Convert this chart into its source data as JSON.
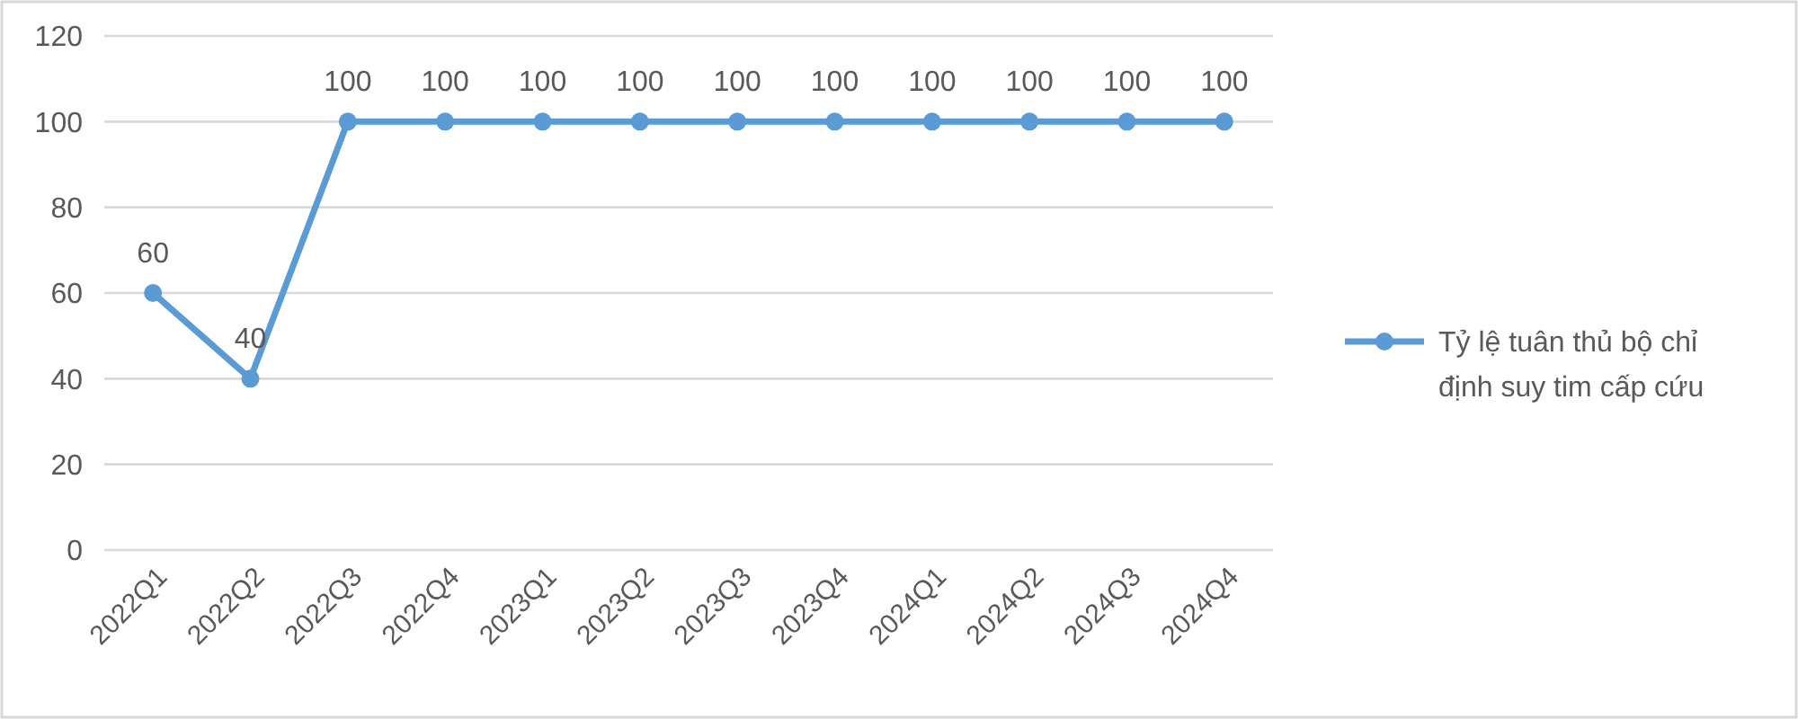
{
  "chart_data": {
    "type": "line",
    "categories": [
      "2022Q1",
      "2022Q2",
      "2022Q3",
      "2022Q4",
      "2023Q1",
      "2023Q2",
      "2023Q3",
      "2023Q4",
      "2024Q1",
      "2024Q2",
      "2024Q3",
      "2024Q4"
    ],
    "series": [
      {
        "name": "Tỷ lệ tuân thủ bộ chỉ định suy tim cấp cứu",
        "color": "#5b9bd5",
        "values": [
          60,
          40,
          100,
          100,
          100,
          100,
          100,
          100,
          100,
          100,
          100,
          100
        ]
      }
    ],
    "ylim": [
      0,
      120
    ],
    "yticks": [
      0,
      20,
      40,
      60,
      80,
      100,
      120
    ],
    "grid": "y",
    "legend": "right",
    "marker": "circle",
    "line_style": "solid",
    "data_labels": true
  }
}
